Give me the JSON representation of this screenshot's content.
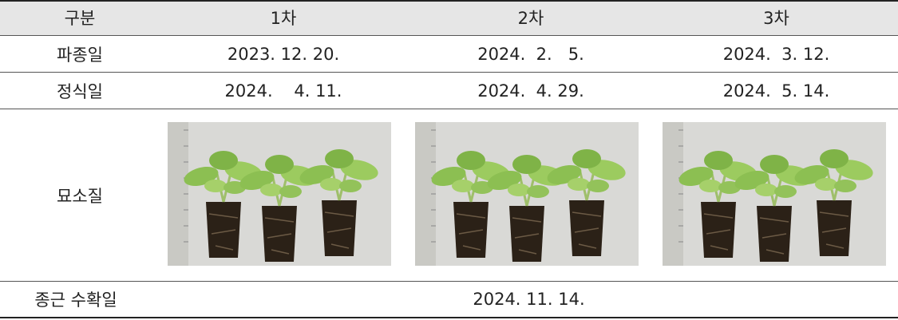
{
  "table": {
    "header": [
      "구분",
      "1차",
      "2차",
      "3차"
    ],
    "rows": [
      [
        "파종일",
        "2023. 12. 20.",
        "2024.  2.   5.",
        "2024.  3. 12."
      ],
      [
        "정식일",
        "2024.    4. 11.",
        "2024.  4. 29.",
        "2024.  5. 14."
      ],
      [
        "묘소질"
      ],
      [
        "종근 수확일",
        "2024. 11. 14."
      ]
    ]
  }
}
